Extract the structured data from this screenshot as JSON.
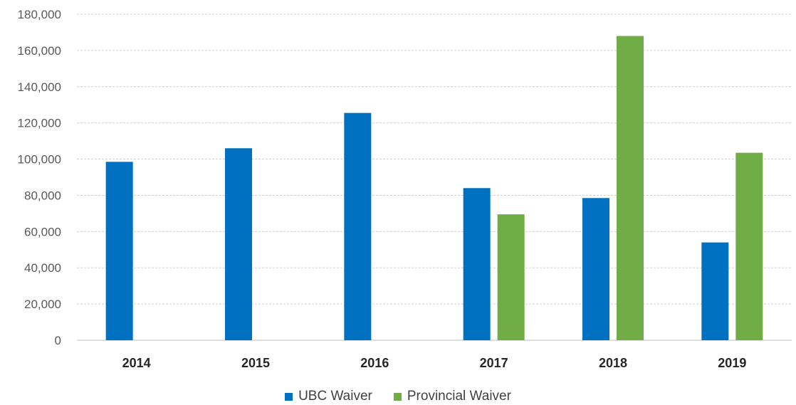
{
  "chart_data": {
    "type": "bar",
    "title": "",
    "xlabel": "",
    "ylabel": "",
    "categories": [
      "2014",
      "2015",
      "2016",
      "2017",
      "2018",
      "2019"
    ],
    "series": [
      {
        "name": "UBC Waiver",
        "color": "#0070C0",
        "values": [
          98500,
          106000,
          125500,
          84000,
          78500,
          54000
        ]
      },
      {
        "name": "Provincial Waiver",
        "color": "#70AD47",
        "values": [
          null,
          null,
          null,
          69500,
          168000,
          103500
        ]
      }
    ],
    "ylim": [
      0,
      180000
    ],
    "yticks": [
      "0",
      "20,000",
      "40,000",
      "60,000",
      "80,000",
      "100,000",
      "120,000",
      "140,000",
      "160,000",
      "180,000"
    ],
    "grid": true,
    "legend": "bottom"
  }
}
